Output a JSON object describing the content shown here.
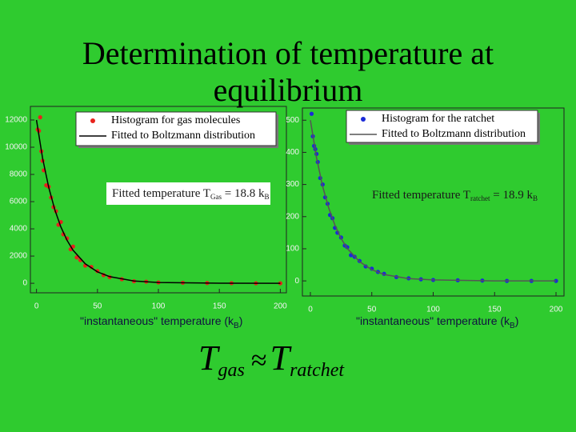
{
  "slide": {
    "title": "Determination of temperature at equilibrium",
    "formula": [
      "T",
      "gas",
      "≈",
      "T",
      "ratchet"
    ]
  },
  "chart_data": [
    {
      "type": "scatter",
      "xlim": [
        -5,
        205
      ],
      "ylim": [
        -700,
        13000
      ],
      "xticks": [
        0,
        50,
        100,
        150,
        200
      ],
      "yticks": [
        0,
        2000,
        4000,
        6000,
        8000,
        10000,
        12000
      ],
      "xlabel": [
        "\"instantaneous\" temperature (k",
        "B",
        ")"
      ],
      "annotation": [
        "Fitted temperature T",
        "Gas",
        " = 18.8 k",
        "B"
      ],
      "series": [
        {
          "name": "Histogram for gas molecules",
          "color": "#e8221c",
          "mode": "markers",
          "x": [
            1,
            2,
            3,
            4,
            5,
            6,
            8,
            10,
            12,
            14,
            16,
            18,
            20,
            22,
            25,
            28,
            30,
            33,
            36,
            40,
            45,
            50,
            55,
            60,
            70,
            80,
            90,
            100,
            120,
            140,
            160,
            180,
            200
          ],
          "values": [
            11300,
            11200,
            12200,
            9700,
            9000,
            8300,
            7200,
            7100,
            6300,
            5600,
            5300,
            4300,
            4500,
            3600,
            3300,
            2500,
            2700,
            1900,
            1700,
            1300,
            1200,
            900,
            600,
            450,
            300,
            150,
            120,
            60,
            40,
            20,
            10,
            0,
            0
          ]
        },
        {
          "name": "Fitted to Boltzmann distribution",
          "color": "#000000",
          "mode": "line",
          "x": [
            0,
            5,
            10,
            15,
            20,
            25,
            30,
            40,
            50,
            60,
            80,
            100,
            150,
            200
          ],
          "values": [
            12000,
            9200,
            7050,
            5410,
            4140,
            3170,
            2430,
            1430,
            840,
            490,
            170,
            60,
            5,
            0
          ]
        }
      ]
    },
    {
      "type": "scatter",
      "xlim": [
        -6.5,
        206.5
      ],
      "ylim": [
        -47,
        538
      ],
      "xticks": [
        0,
        50,
        100,
        150,
        200
      ],
      "yticks": [
        0,
        100,
        200,
        300,
        400,
        500
      ],
      "xlabel": [
        "\"instantaneous\" temperature (k",
        "B",
        ")"
      ],
      "annotation": [
        "Fitted temperature T",
        "ratchet",
        " = 18.9 k",
        "B"
      ],
      "series": [
        {
          "name": "Histogram for the ratchet",
          "color": "#1a2ad8",
          "mode": "markers",
          "x": [
            1,
            2,
            3,
            4,
            5,
            6,
            8,
            10,
            12,
            14,
            16,
            18,
            20,
            22,
            25,
            28,
            30,
            33,
            36,
            40,
            45,
            50,
            55,
            60,
            70,
            80,
            90,
            100,
            120,
            140,
            160,
            180,
            200
          ],
          "values": [
            520,
            450,
            420,
            410,
            395,
            370,
            320,
            300,
            260,
            240,
            205,
            195,
            165,
            150,
            135,
            110,
            105,
            80,
            75,
            62,
            45,
            38,
            28,
            22,
            12,
            8,
            5,
            3,
            2,
            1,
            0,
            0,
            0
          ]
        },
        {
          "name": "Fitted to Boltzmann distribution",
          "color": "#555555",
          "mode": "line",
          "x": [
            0,
            5,
            10,
            15,
            20,
            25,
            30,
            40,
            50,
            60,
            80,
            100,
            150,
            200
          ],
          "values": [
            500,
            383,
            294,
            226,
            173,
            132,
            101,
            60,
            35,
            20,
            7,
            3,
            0,
            0
          ]
        }
      ]
    }
  ]
}
